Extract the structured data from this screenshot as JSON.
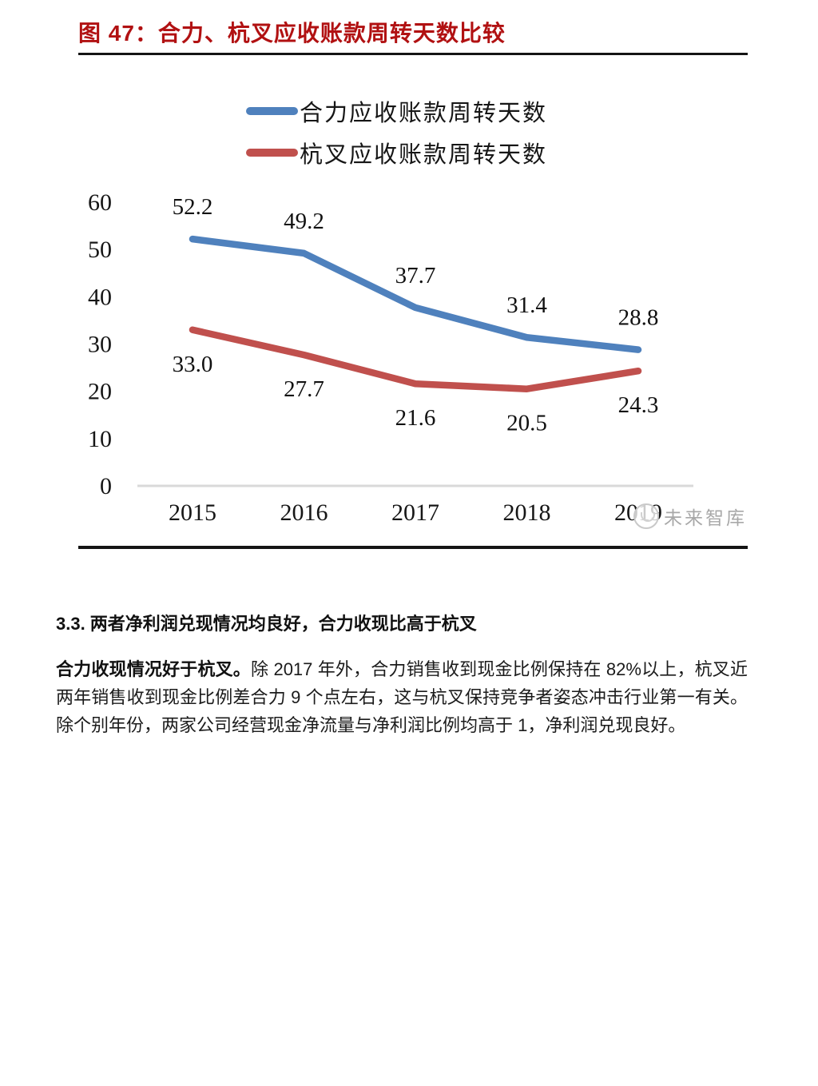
{
  "figure": {
    "title": "图 47：合力、杭叉应收账款周转天数比较",
    "watermark": "未来智库"
  },
  "chart_data": {
    "type": "line",
    "title": "图 47：合力、杭叉应收账款周转天数比较",
    "categories": [
      "2015",
      "2016",
      "2017",
      "2018",
      "2019"
    ],
    "series": [
      {
        "name": "合力应收账款周转天数",
        "color": "#4F81BD",
        "values": [
          52.2,
          49.2,
          37.7,
          31.4,
          28.8
        ],
        "label_side": "above"
      },
      {
        "name": "杭叉应收账款周转天数",
        "color": "#C0504D",
        "values": [
          33.0,
          27.7,
          21.6,
          20.5,
          24.3
        ],
        "label_side": "below"
      }
    ],
    "xlabel": "",
    "ylabel": "",
    "ylim": [
      0,
      60
    ],
    "yticks": [
      0,
      10,
      20,
      30,
      40,
      50,
      60
    ],
    "grid": false,
    "legend_position": "top-center",
    "value_format": "one-decimal",
    "axis_color": "#D9D9D9",
    "label_color": "#111111"
  },
  "section": {
    "heading": "3.3. 两者净利润兑现情况均良好，合力收现比高于杭叉",
    "paragraph_lead": "合力收现情况好于杭叉。",
    "paragraph_rest": "除 2017 年外，合力销售收到现金比例保持在 82%以上，杭叉近两年销售收到现金比例差合力 9 个点左右，这与杭叉保持竞争者姿态冲击行业第一有关。除个别年份，两家公司经营现金净流量与净利润比例均高于 1，净利润兑现良好。"
  },
  "colors": {
    "title_red": "#B11112",
    "series_blue": "#4F81BD",
    "series_red": "#C0504D",
    "axis_gray": "#D9D9D9",
    "watermark_gray": "#A8A8A8",
    "rule_black": "#141414"
  }
}
